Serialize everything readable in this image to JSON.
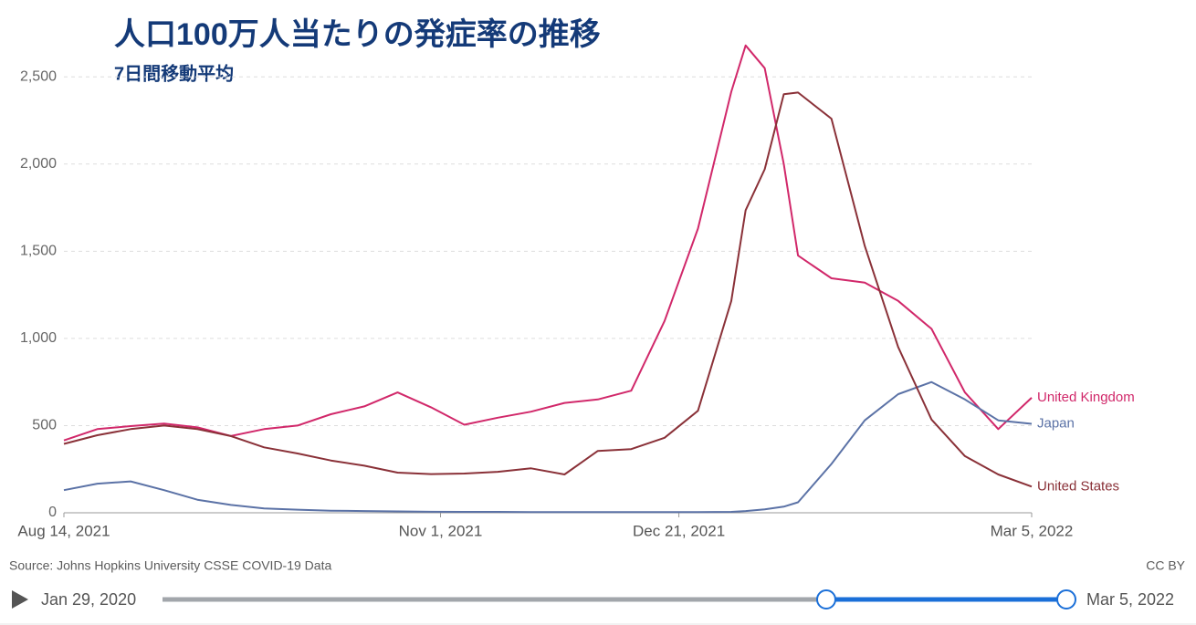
{
  "chart_data": {
    "type": "line",
    "title": "人口100万人当たりの発症率の推移",
    "subtitle": "7日間移動平均",
    "x": [
      "Aug 14, 2021",
      "Aug 21, 2021",
      "Aug 28, 2021",
      "Sep 4, 2021",
      "Sep 11, 2021",
      "Sep 18, 2021",
      "Sep 25, 2021",
      "Oct 2, 2021",
      "Oct 9, 2021",
      "Oct 16, 2021",
      "Oct 23, 2021",
      "Oct 30, 2021",
      "Nov 6, 2021",
      "Nov 13, 2021",
      "Nov 20, 2021",
      "Nov 27, 2021",
      "Dec 4, 2021",
      "Dec 11, 2021",
      "Dec 18, 2021",
      "Dec 25, 2021",
      "Jan 1, 2022",
      "Jan 4, 2022",
      "Jan 8, 2022",
      "Jan 12, 2022",
      "Jan 15, 2022",
      "Jan 22, 2022",
      "Jan 29, 2022",
      "Feb 5, 2022",
      "Feb 12, 2022",
      "Feb 19, 2022",
      "Feb 26, 2022",
      "Mar 5, 2022"
    ],
    "series": [
      {
        "name": "United Kingdom",
        "color": "#d1286a",
        "values": [
          415,
          480,
          497,
          512,
          490,
          440,
          480,
          500,
          565,
          610,
          690,
          605,
          505,
          545,
          580,
          630,
          650,
          700,
          1100,
          1630,
          2415,
          2680,
          2550,
          2000,
          1475,
          1345,
          1320,
          1215,
          1055,
          690,
          480,
          660
        ]
      },
      {
        "name": "Japan",
        "color": "#5b72a6",
        "values": [
          130,
          167,
          180,
          130,
          75,
          45,
          25,
          18,
          12,
          10,
          8,
          6,
          5,
          5,
          4,
          4,
          4,
          4,
          4,
          4,
          5,
          10,
          20,
          35,
          60,
          280,
          530,
          680,
          750,
          650,
          530,
          510
        ]
      },
      {
        "name": "United States",
        "color": "#8a3138",
        "values": [
          395,
          445,
          480,
          500,
          480,
          440,
          375,
          340,
          300,
          270,
          230,
          222,
          225,
          235,
          255,
          220,
          355,
          365,
          430,
          585,
          1215,
          1735,
          1970,
          2400,
          2410,
          2260,
          1530,
          950,
          535,
          325,
          220,
          150
        ]
      }
    ],
    "xlim": [
      "Aug 14, 2021",
      "Mar 5, 2022"
    ],
    "xticks": [
      "Aug 14, 2021",
      "Nov 1, 2021",
      "Dec 21, 2021",
      "Mar 5, 2022"
    ],
    "ylim": [
      0,
      2700
    ],
    "yticks": [
      0,
      500,
      {
        "value": 1000,
        "label": "1,000"
      },
      {
        "value": 1500,
        "label": "1,500"
      },
      {
        "value": 2000,
        "label": "2,000"
      },
      {
        "value": 2500,
        "label": "2,500"
      }
    ],
    "grid": true
  },
  "footer": {
    "source": "Source: Johns Hopkins University CSSE COVID-19 Data",
    "license": "CC BY"
  },
  "timeline": {
    "start": "Jan 29, 2020",
    "end": "Mar 5, 2022"
  }
}
